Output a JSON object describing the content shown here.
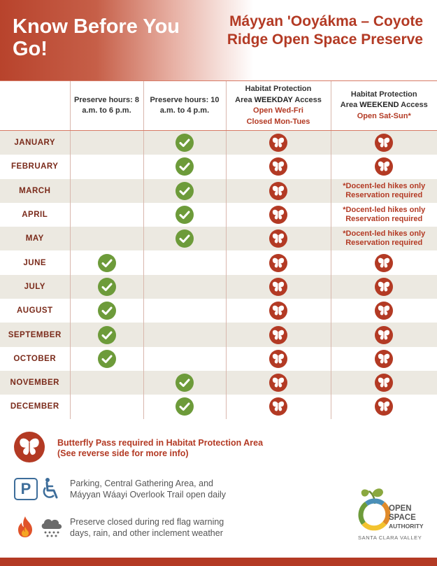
{
  "header": {
    "title": "Know Before You Go!",
    "preserve_name": "Máyyan 'Ooyákma – Coyote Ridge Open Space Preserve"
  },
  "columns": {
    "col1": "Preserve hours: 8 a.m. to 6 p.m.",
    "col2": "Preserve hours: 10 a.m. to 4 p.m.",
    "col3_line1": "Habitat Protection",
    "col3_pre": "Area ",
    "col3_emph": "WEEKDAY",
    "col3_post": " Access",
    "col3_open": "Open Wed-Fri",
    "col3_closed": "Closed Mon-Tues",
    "col4_line1": "Habitat Protection",
    "col4_pre": "Area ",
    "col4_emph": "WEEKEND",
    "col4_post": " Access",
    "col4_open": "Open Sat-Sun*"
  },
  "months": [
    {
      "name": "JANUARY",
      "hours": "10-4",
      "weekday": "pass",
      "weekend": "pass"
    },
    {
      "name": "FEBRUARY",
      "hours": "10-4",
      "weekday": "pass",
      "weekend": "pass"
    },
    {
      "name": "MARCH",
      "hours": "10-4",
      "weekday": "pass",
      "weekend": "note"
    },
    {
      "name": "APRIL",
      "hours": "10-4",
      "weekday": "pass",
      "weekend": "note"
    },
    {
      "name": "MAY",
      "hours": "10-4",
      "weekday": "pass",
      "weekend": "note"
    },
    {
      "name": "JUNE",
      "hours": "8-6",
      "weekday": "pass",
      "weekend": "pass"
    },
    {
      "name": "JULY",
      "hours": "8-6",
      "weekday": "pass",
      "weekend": "pass"
    },
    {
      "name": "AUGUST",
      "hours": "8-6",
      "weekday": "pass",
      "weekend": "pass"
    },
    {
      "name": "SEPTEMBER",
      "hours": "8-6",
      "weekday": "pass",
      "weekend": "pass"
    },
    {
      "name": "OCTOBER",
      "hours": "8-6",
      "weekday": "pass",
      "weekend": "pass"
    },
    {
      "name": "NOVEMBER",
      "hours": "10-4",
      "weekday": "pass",
      "weekend": "pass"
    },
    {
      "name": "DECEMBER",
      "hours": "10-4",
      "weekday": "pass",
      "weekend": "pass"
    }
  ],
  "weekend_note": {
    "line1": "*Docent-led hikes only",
    "line2": "Reservation required"
  },
  "legend": {
    "butterfly_line1": "Butterfly Pass required in Habitat Protection Area",
    "butterfly_line2": "(See reverse side for more info)",
    "parking_icon_letter": "P",
    "parking_line1": "Parking, Central Gathering Area, and",
    "parking_line2": "Máyyan Wáayi Overlook Trail open daily",
    "closed_line1": "Preserve closed during red flag warning",
    "closed_line2": "days, rain, and other inclement weather"
  },
  "logo": {
    "line1": "OPEN",
    "line2": "SPACE",
    "line3": "AUTHORITY",
    "sub": "SANTA CLARA VALLEY"
  },
  "icons": {
    "pass": "butterfly-icon",
    "open": "checkmark-icon"
  },
  "colors": {
    "brand_red": "#b33a24",
    "check_green": "#6d9b3a",
    "row_shade": "#ece9e1",
    "accessibility_blue": "#3d6d9a"
  }
}
